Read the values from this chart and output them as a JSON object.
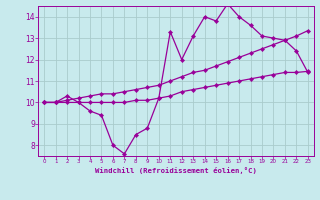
{
  "line1_x": [
    0,
    1,
    2,
    3,
    4,
    5,
    6,
    7,
    8,
    9,
    10,
    11,
    12,
    13,
    14,
    15,
    16,
    17,
    18,
    19,
    20,
    21,
    22,
    23
  ],
  "line1_y": [
    10.0,
    10.0,
    10.3,
    10.0,
    9.6,
    9.4,
    8.0,
    7.6,
    8.5,
    8.8,
    10.2,
    13.3,
    12.0,
    13.1,
    14.0,
    13.8,
    14.6,
    14.0,
    13.6,
    13.1,
    13.0,
    12.9,
    12.4,
    11.4
  ],
  "line2_x": [
    0,
    1,
    2,
    3,
    4,
    5,
    6,
    7,
    8,
    9,
    10,
    11,
    12,
    13,
    14,
    15,
    16,
    17,
    18,
    19,
    20,
    21,
    22,
    23
  ],
  "line2_y": [
    10.0,
    10.0,
    10.1,
    10.2,
    10.3,
    10.4,
    10.4,
    10.5,
    10.6,
    10.7,
    10.8,
    11.0,
    11.2,
    11.4,
    11.5,
    11.7,
    11.9,
    12.1,
    12.3,
    12.5,
    12.7,
    12.9,
    13.1,
    13.35
  ],
  "line3_x": [
    0,
    1,
    2,
    3,
    4,
    5,
    6,
    7,
    8,
    9,
    10,
    11,
    12,
    13,
    14,
    15,
    16,
    17,
    18,
    19,
    20,
    21,
    22,
    23
  ],
  "line3_y": [
    10.0,
    10.0,
    10.0,
    10.0,
    10.0,
    10.0,
    10.0,
    10.0,
    10.1,
    10.1,
    10.2,
    10.3,
    10.5,
    10.6,
    10.7,
    10.8,
    10.9,
    11.0,
    11.1,
    11.2,
    11.3,
    11.4,
    11.4,
    11.45
  ],
  "line_color": "#990099",
  "bg_color": "#c8eaed",
  "grid_color": "#aacccc",
  "xlabel": "Windchill (Refroidissement éolien,°C)",
  "xlim": [
    -0.5,
    23.5
  ],
  "ylim": [
    7.5,
    14.5
  ],
  "yticks": [
    8,
    9,
    10,
    11,
    12,
    13,
    14
  ],
  "xticks": [
    0,
    1,
    2,
    3,
    4,
    5,
    6,
    7,
    8,
    9,
    10,
    11,
    12,
    13,
    14,
    15,
    16,
    17,
    18,
    19,
    20,
    21,
    22,
    23
  ],
  "marker": "D",
  "markersize": 2.2,
  "linewidth": 0.9
}
